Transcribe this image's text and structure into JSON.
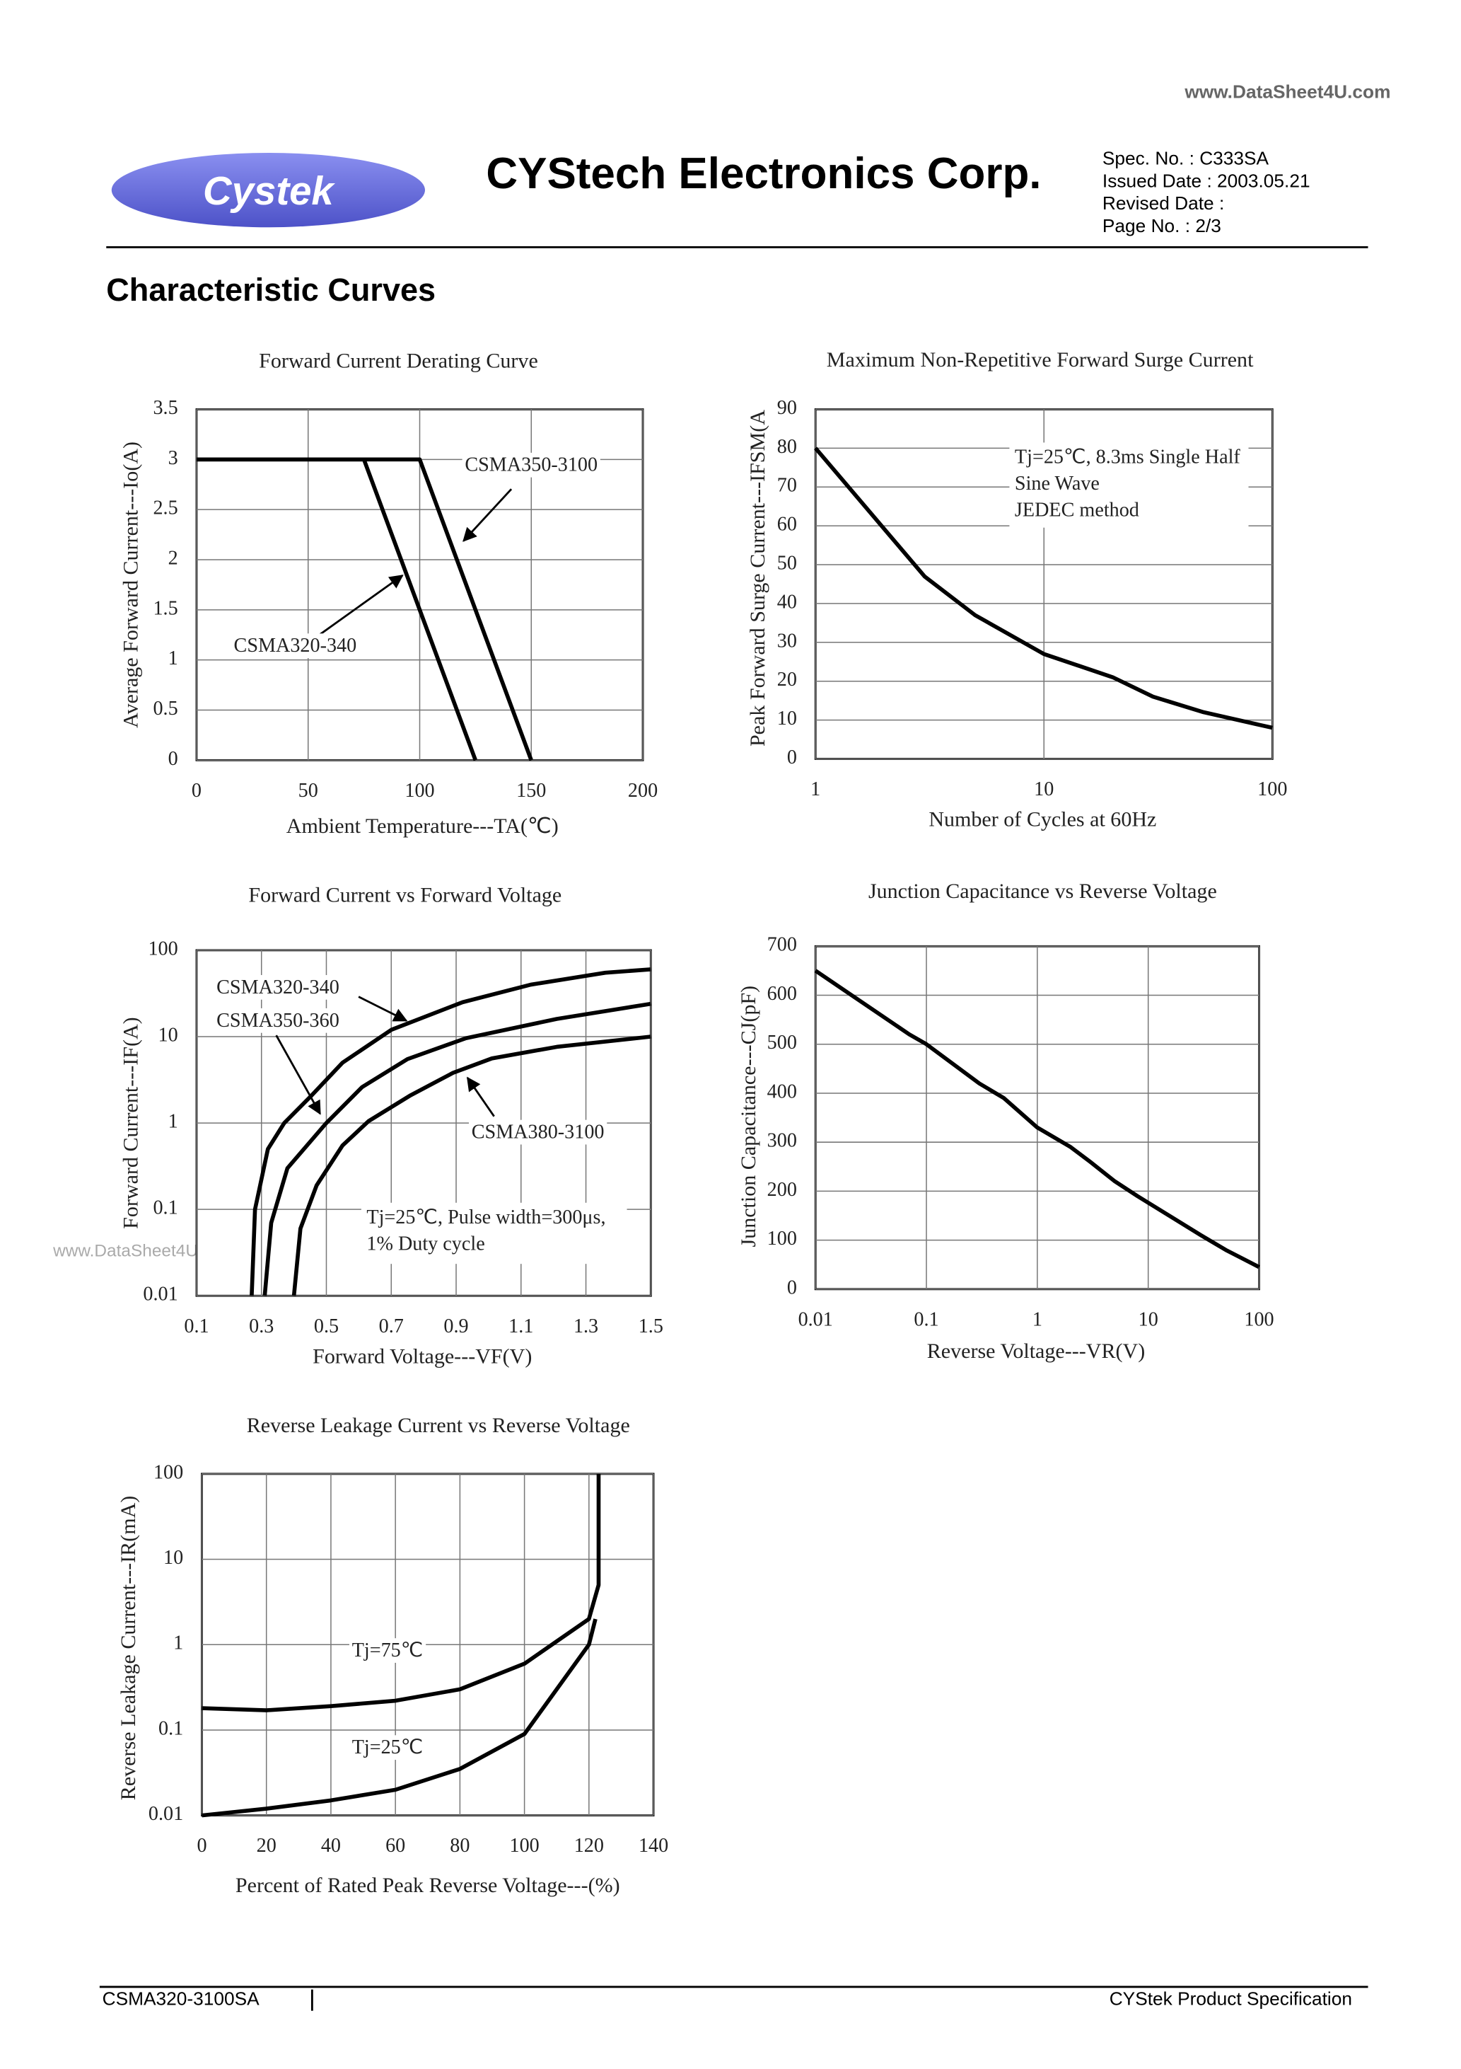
{
  "header": {
    "watermark": "www.DataSheet4U.com",
    "logo": "Cystek",
    "company": "CYStech Electronics Corp.",
    "spec_lines": [
      "Spec. No. : C333SA",
      "Issued Date : 2003.05.21",
      "Revised Date :",
      "Page No. : 2/3"
    ]
  },
  "section_title": "Characteristic Curves",
  "side_watermark": "www.DataSheet4U.com",
  "footer": {
    "left": "CSMA320-3100SA",
    "right": "CYStek Product Specification"
  },
  "chart_data": [
    {
      "type": "line",
      "title": "Forward Current Derating Curve",
      "xlabel": "Ambient Temperature---TA(℃)",
      "ylabel": "Average Forward Current---Io(A)",
      "xlim": [
        0,
        200
      ],
      "xticks": [
        0,
        50,
        100,
        150,
        200
      ],
      "ylim": [
        0,
        3.5
      ],
      "yticks": [
        0,
        0.5,
        1,
        1.5,
        2,
        2.5,
        3,
        3.5
      ],
      "grid": true,
      "series": [
        {
          "name": "CSMA320-340",
          "color": "#000000",
          "x": [
            0,
            75,
            125
          ],
          "values": [
            3,
            3,
            0
          ]
        },
        {
          "name": "CSMA350-3100",
          "color": "#000000",
          "x": [
            0,
            100,
            150
          ],
          "values": [
            3,
            3,
            0
          ]
        }
      ]
    },
    {
      "type": "line",
      "title": "Maximum Non-Repetitive Forward Surge Current",
      "xlabel": "Number of Cycles at 60Hz",
      "ylabel": "Peak Forward Surge Current---IFSM(A",
      "xscale": "log",
      "xlim": [
        1,
        100
      ],
      "xticks": [
        1,
        10,
        100
      ],
      "ylim": [
        0,
        90
      ],
      "yticks": [
        0,
        10,
        20,
        30,
        40,
        50,
        60,
        70,
        80,
        90
      ],
      "grid": true,
      "annotation": [
        "Tj=25℃, 8.3ms Single Half",
        "Sine Wave",
        "JEDEC method"
      ],
      "series": [
        {
          "color": "#000000",
          "x": [
            1,
            3,
            5,
            10,
            20,
            30,
            50,
            100
          ],
          "values": [
            80,
            47,
            37,
            27,
            21,
            16,
            12,
            8
          ]
        }
      ]
    },
    {
      "type": "line",
      "title": "Forward Current vs Forward Voltage",
      "xlabel": "Forward Voltage---VF(V)",
      "ylabel": "Forward Current---IF(A)",
      "xlim": [
        0.1,
        1.5
      ],
      "xticks": [
        0.1,
        0.3,
        0.5,
        0.7,
        0.9,
        1.1,
        1.3,
        1.5
      ],
      "yscale": "log",
      "ylim": [
        0.01,
        100
      ],
      "yticks": [
        0.01,
        0.1,
        1,
        10,
        100
      ],
      "grid": true,
      "annotation": [
        "Tj=25℃, Pulse width=300μs,",
        "1% Duty cycle"
      ],
      "series": [
        {
          "name": "CSMA320-340",
          "color": "#000000",
          "x": [
            0.27,
            0.28,
            0.32,
            0.37,
            0.45,
            0.55,
            0.7,
            0.92,
            1.13,
            1.36,
            1.5
          ],
          "values": [
            0.01,
            0.1,
            0.5,
            1,
            2,
            5,
            12,
            25,
            40,
            55,
            60
          ]
        },
        {
          "name": "CSMA350-360",
          "color": "#000000",
          "x": [
            0.31,
            0.33,
            0.38,
            0.5,
            0.61,
            0.75,
            0.93,
            1.21,
            1.5
          ],
          "values": [
            0.01,
            0.07,
            0.3,
            1,
            2.6,
            5.5,
            9.6,
            16,
            24
          ]
        },
        {
          "name": "CSMA380-3100",
          "color": "#000000",
          "x": [
            0.4,
            0.42,
            0.47,
            0.55,
            0.63,
            0.76,
            0.89,
            1.01,
            1.21,
            1.5
          ],
          "values": [
            0.01,
            0.06,
            0.19,
            0.55,
            1.05,
            2.1,
            3.8,
            5.6,
            7.6,
            10
          ]
        }
      ]
    },
    {
      "type": "line",
      "title": "Junction Capacitance vs Reverse Voltage",
      "xlabel": "Reverse Voltage---VR(V)",
      "ylabel": "Junction Capacitance---CJ(pF)",
      "xscale": "log",
      "xlim": [
        0.01,
        100
      ],
      "xticks": [
        0.01,
        0.1,
        1,
        10,
        100
      ],
      "ylim": [
        0,
        700
      ],
      "yticks": [
        0,
        100,
        200,
        300,
        400,
        500,
        600,
        700
      ],
      "grid": true,
      "series": [
        {
          "color": "#000000",
          "x": [
            0.01,
            0.07,
            0.1,
            0.3,
            0.5,
            1,
            2,
            3,
            5,
            8,
            30,
            50,
            100
          ],
          "values": [
            650,
            520,
            500,
            420,
            390,
            330,
            290,
            260,
            220,
            190,
            110,
            80,
            45
          ]
        }
      ]
    },
    {
      "type": "line",
      "title": "Reverse  Leakage Current vs Reverse Voltage",
      "xlabel": "Percent of Rated Peak Reverse Voltage---(%)",
      "ylabel": "Reverse Leakage Current---IR(mA)",
      "xlim": [
        0,
        140
      ],
      "xticks": [
        0,
        20,
        40,
        60,
        80,
        100,
        120,
        140
      ],
      "yscale": "log",
      "ylim": [
        0.01,
        100
      ],
      "yticks": [
        0.01,
        0.1,
        1,
        10,
        100
      ],
      "grid": true,
      "series": [
        {
          "name": "Tj=75℃",
          "color": "#000000",
          "x": [
            0,
            20,
            40,
            60,
            80,
            100,
            120,
            123,
            123
          ],
          "values": [
            0.18,
            0.17,
            0.19,
            0.22,
            0.3,
            0.6,
            2,
            5,
            100
          ]
        },
        {
          "name": "Tj=25℃",
          "color": "#000000",
          "x": [
            0,
            20,
            40,
            60,
            80,
            100,
            120,
            122
          ],
          "values": [
            0.01,
            0.012,
            0.015,
            0.02,
            0.035,
            0.09,
            1,
            2
          ]
        }
      ]
    }
  ]
}
